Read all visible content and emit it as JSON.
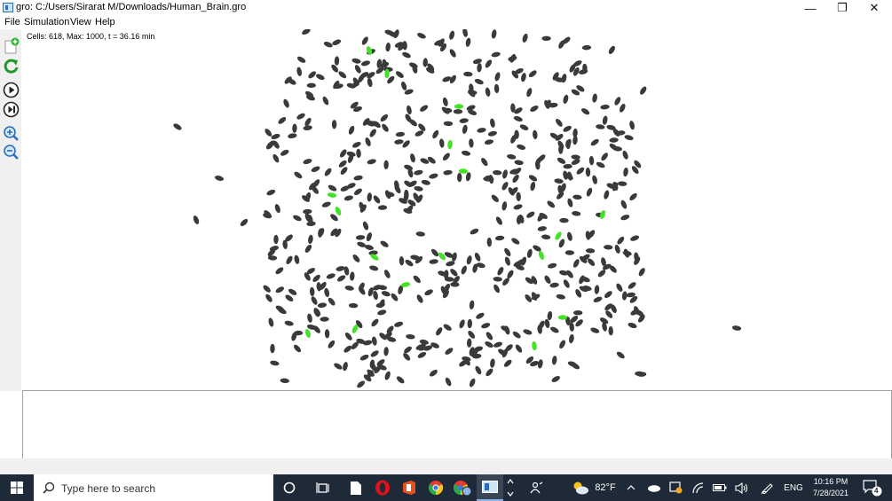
{
  "window": {
    "title": "gro: C:/Users/Sirarat M/Downloads/Human_Brain.gro",
    "minimize_label": "—",
    "restore_label": "❐",
    "close_label": "✕"
  },
  "menu": {
    "items": [
      {
        "label": "File"
      },
      {
        "label": "Simulation"
      },
      {
        "label": "View"
      },
      {
        "label": "Help"
      }
    ]
  },
  "toolbar": {
    "icons": [
      "new-file-icon",
      "reload-icon",
      "play-icon",
      "step-icon",
      "zoom-in-icon",
      "zoom-out-icon"
    ]
  },
  "simulation": {
    "status": "Cells: 618, Max: 1000, t = 36.16 min",
    "cell_color": "#3a3a3a",
    "highlight_color": "#44e02a"
  },
  "taskbar": {
    "search_placeholder": "Type here to search",
    "weather": "82°F",
    "language": "ENG",
    "time": "10:16 PM",
    "date": "7/28/2021",
    "notifications": "4",
    "background": "#1f2a38"
  }
}
